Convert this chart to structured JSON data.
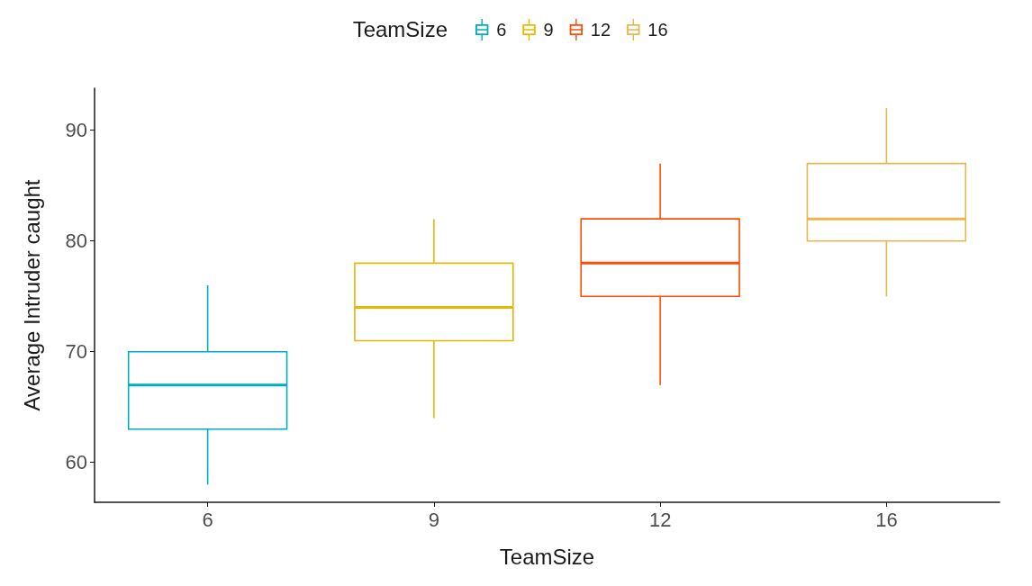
{
  "chart_data": {
    "type": "box",
    "xlabel": "TeamSize",
    "ylabel": "Average Intruder caught",
    "legend_title": "TeamSize",
    "legend": "top",
    "grid": false,
    "categories": [
      "6",
      "9",
      "12",
      "16"
    ],
    "ylim": [
      56.4,
      93.8
    ],
    "yticks": [
      60,
      70,
      80,
      90
    ],
    "series": [
      {
        "name": "6",
        "color": "#00afbb",
        "boxes": [
          {
            "low": 58,
            "q1": 63,
            "median": 67,
            "q3": 70,
            "high": 76
          },
          null,
          null,
          null
        ]
      },
      {
        "name": "9",
        "color": "#e7b800",
        "boxes": [
          null,
          {
            "low": 64,
            "q1": 71,
            "median": 74,
            "q3": 78,
            "high": 82
          },
          null,
          null
        ]
      },
      {
        "name": "12",
        "color": "#fc4e07",
        "boxes": [
          null,
          null,
          {
            "low": 67,
            "q1": 75,
            "median": 78,
            "q3": 82,
            "high": 87
          },
          null
        ]
      },
      {
        "name": "16",
        "color": "#e8b64f",
        "boxes": [
          null,
          null,
          null,
          {
            "low": 75,
            "q1": 80,
            "median": 82,
            "q3": 87,
            "high": 92
          }
        ]
      }
    ]
  }
}
